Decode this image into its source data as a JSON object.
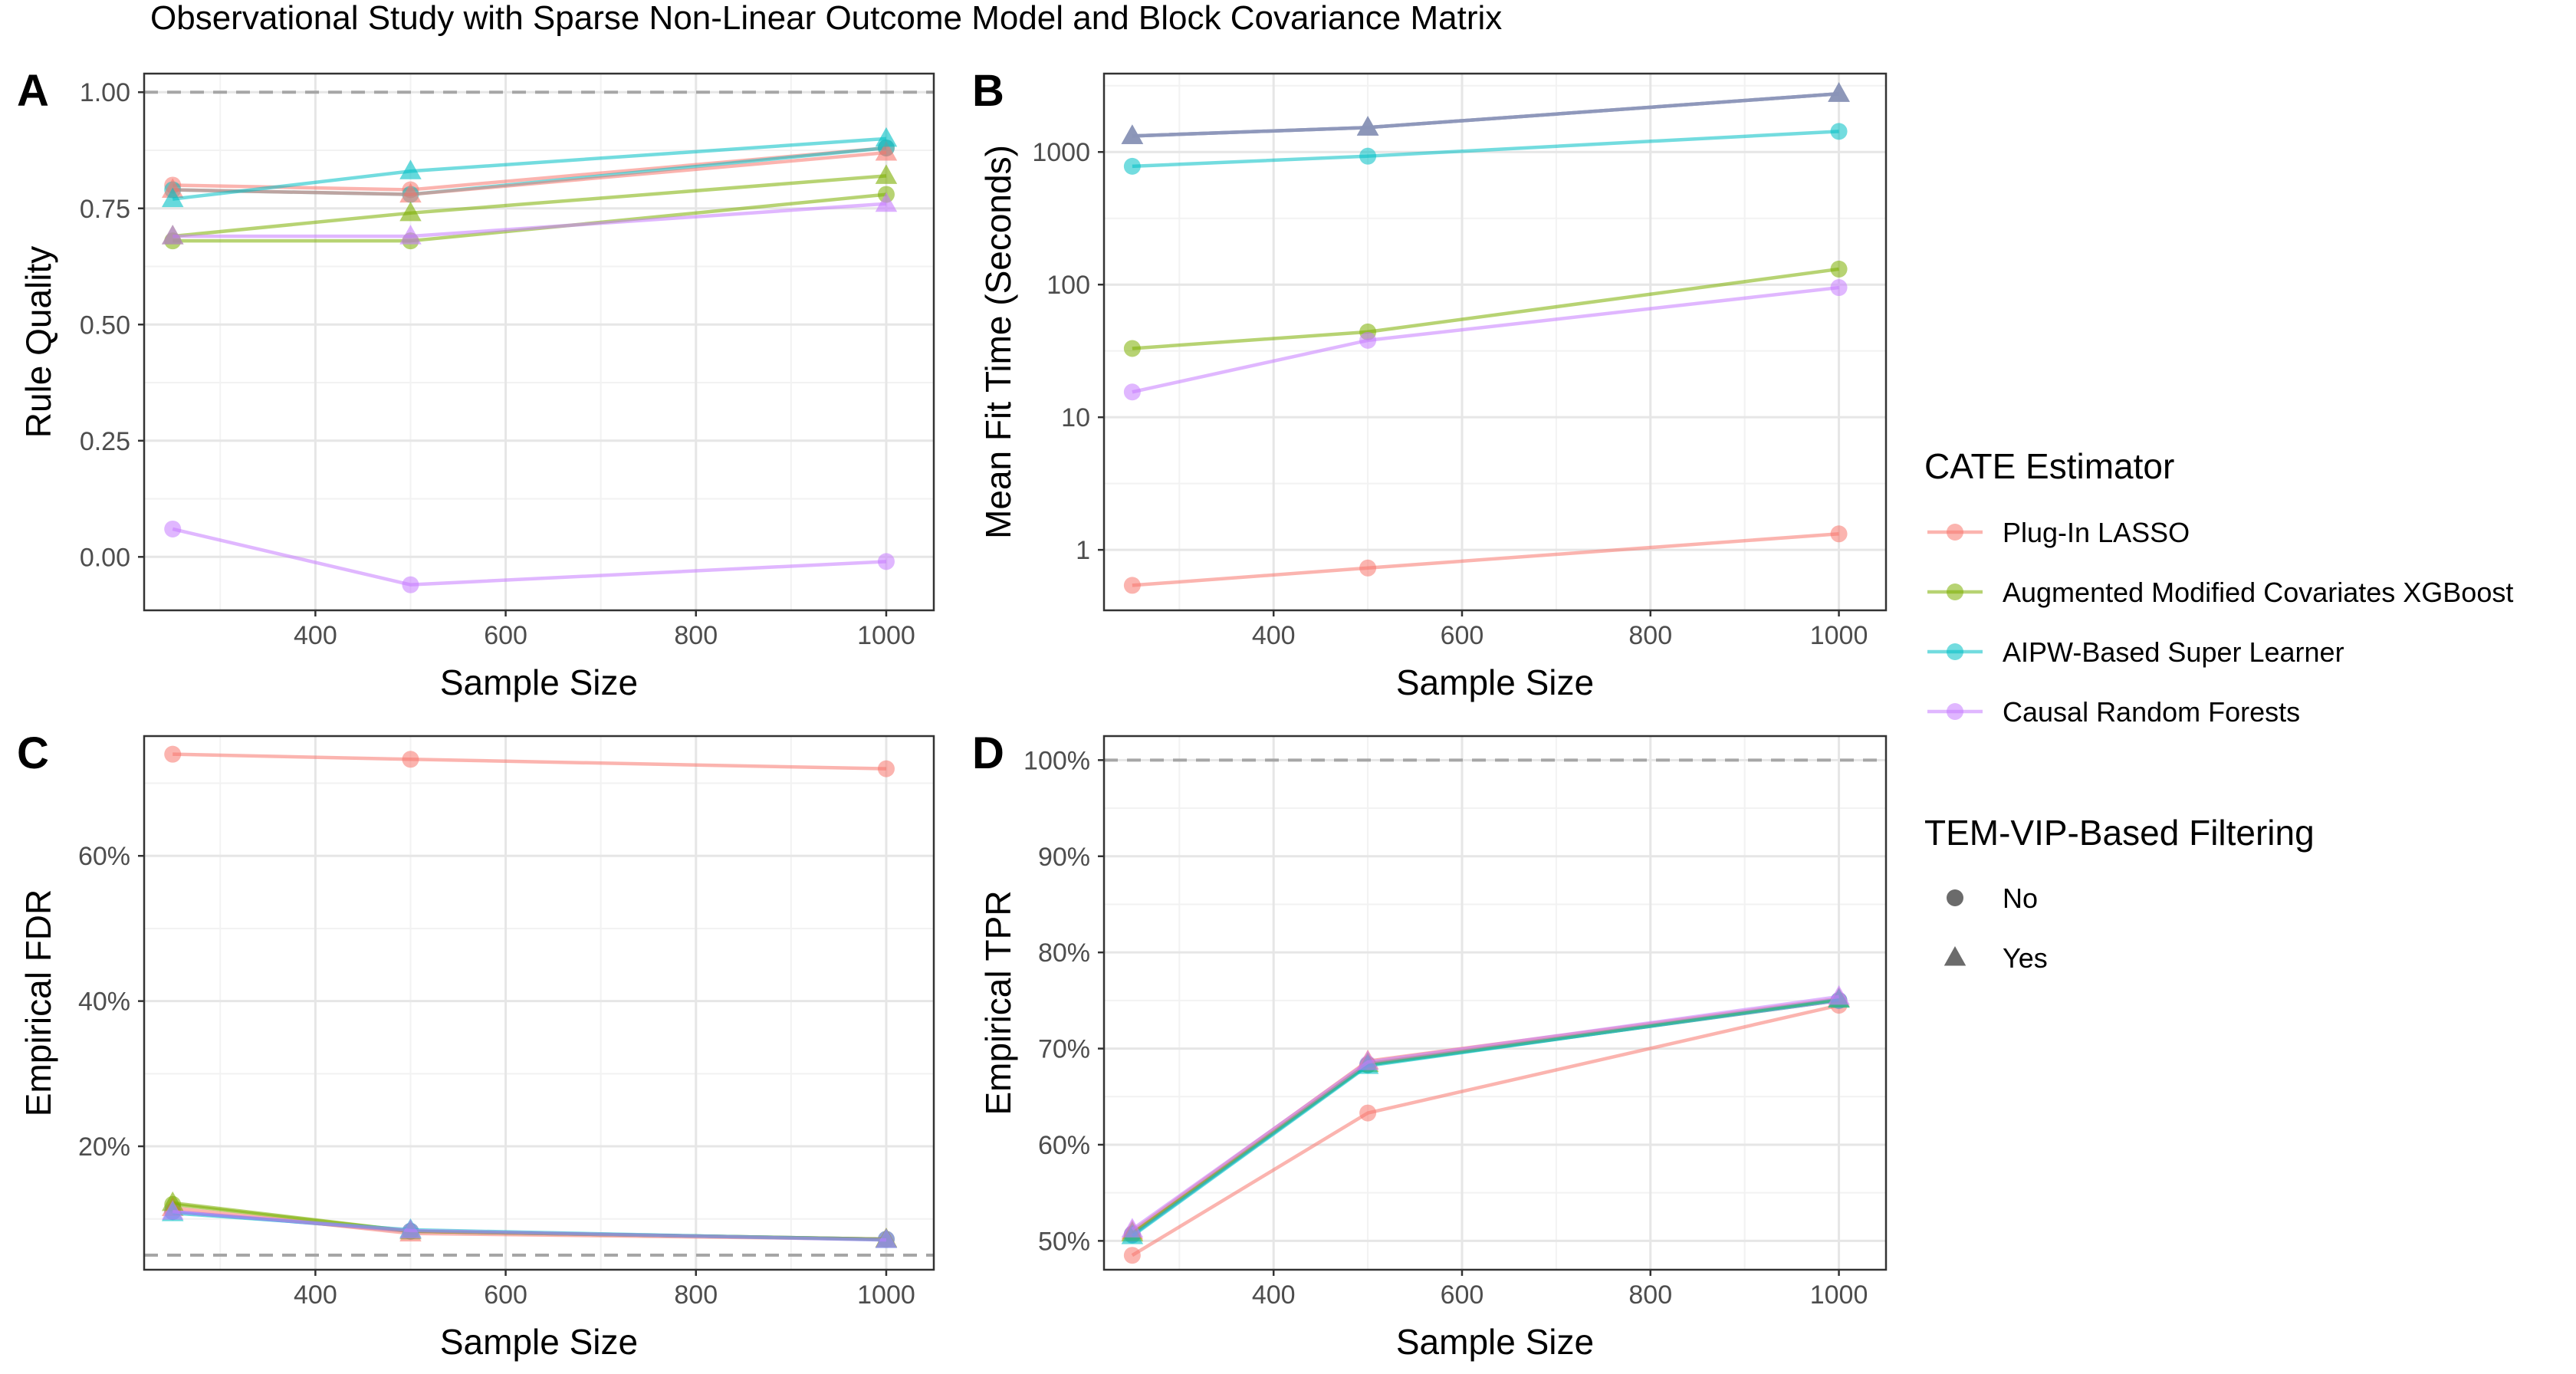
{
  "figure_title": "Observational Study with Sparse Non-Linear Outcome Model and Block Covariance Matrix",
  "chart_data": [
    {
      "panel": "A",
      "type": "line",
      "xlabel": "Sample Size",
      "ylabel": "Rule Quality",
      "x": [
        250,
        500,
        1000
      ],
      "xlim": [
        220,
        1050
      ],
      "xticks": [
        400,
        600,
        800,
        1000
      ],
      "ylim": [
        -0.115,
        1.04
      ],
      "yticks": [
        0,
        0.25,
        0.5,
        0.75,
        1
      ],
      "yticklabels": [
        "0.00",
        "0.25",
        "0.50",
        "0.75",
        "1.00"
      ],
      "reference_line": 1.0,
      "log_y": false,
      "series": [
        {
          "name": "Plug-In LASSO",
          "filtering": "No",
          "values": [
            0.8,
            0.79,
            0.88
          ]
        },
        {
          "name": "Plug-In LASSO",
          "filtering": "Yes",
          "values": [
            0.79,
            0.78,
            0.87
          ]
        },
        {
          "name": "Augmented Modified Covariates XGBoost",
          "filtering": "No",
          "values": [
            0.68,
            0.68,
            0.78
          ]
        },
        {
          "name": "Augmented Modified Covariates XGBoost",
          "filtering": "Yes",
          "values": [
            0.69,
            0.74,
            0.82
          ]
        },
        {
          "name": "AIPW-Based Super Learner",
          "filtering": "No",
          "values": [
            0.79,
            0.78,
            0.88
          ]
        },
        {
          "name": "AIPW-Based Super Learner",
          "filtering": "Yes",
          "values": [
            0.77,
            0.83,
            0.9
          ]
        },
        {
          "name": "Causal Random Forests",
          "filtering": "No",
          "values": [
            0.06,
            -0.06,
            -0.01
          ]
        },
        {
          "name": "Causal Random Forests",
          "filtering": "Yes",
          "values": [
            0.69,
            0.69,
            0.76
          ]
        }
      ]
    },
    {
      "panel": "B",
      "type": "line",
      "xlabel": "Sample Size",
      "ylabel": "Mean Fit Time (Seconds)",
      "x": [
        250,
        500,
        1000
      ],
      "xlim": [
        220,
        1050
      ],
      "xticks": [
        400,
        600,
        800,
        1000
      ],
      "ylim": [
        0.35,
        3900
      ],
      "yticks": [
        1,
        10,
        100,
        1000
      ],
      "yticklabels": [
        "1",
        "10",
        "100",
        "1000"
      ],
      "log_y": true,
      "series": [
        {
          "name": "Plug-In LASSO",
          "filtering": "No",
          "values": [
            0.54,
            0.73,
            1.32
          ]
        },
        {
          "name": "Plug-In LASSO",
          "filtering": "Yes",
          "values": [
            1320,
            1530,
            2750
          ]
        },
        {
          "name": "Augmented Modified Covariates XGBoost",
          "filtering": "No",
          "values": [
            33,
            44,
            131
          ]
        },
        {
          "name": "Augmented Modified Covariates XGBoost",
          "filtering": "Yes",
          "values": [
            1320,
            1530,
            2750
          ]
        },
        {
          "name": "AIPW-Based Super Learner",
          "filtering": "No",
          "values": [
            780,
            930,
            1430
          ]
        },
        {
          "name": "AIPW-Based Super Learner",
          "filtering": "Yes",
          "values": [
            1320,
            1530,
            2750
          ]
        },
        {
          "name": "Causal Random Forests",
          "filtering": "No",
          "values": [
            15.5,
            38,
            95
          ]
        },
        {
          "name": "Causal Random Forests",
          "filtering": "Yes",
          "values": [
            1320,
            1530,
            2750
          ]
        }
      ]
    },
    {
      "panel": "C",
      "type": "line",
      "xlabel": "Sample Size",
      "ylabel": "Empirical FDR",
      "x": [
        250,
        500,
        1000
      ],
      "xlim": [
        220,
        1050
      ],
      "xticks": [
        400,
        600,
        800,
        1000
      ],
      "ylim": [
        0.03,
        0.765
      ],
      "yticks": [
        0.2,
        0.4,
        0.6
      ],
      "yticklabels": [
        "20%",
        "40%",
        "60%"
      ],
      "reference_line": 0.05,
      "log_y": false,
      "series": [
        {
          "name": "Plug-In LASSO",
          "filtering": "No",
          "values": [
            0.74,
            0.733,
            0.72
          ]
        },
        {
          "name": "Plug-In LASSO",
          "filtering": "Yes",
          "values": [
            0.115,
            0.08,
            0.072
          ]
        },
        {
          "name": "Augmented Modified Covariates XGBoost",
          "filtering": "No",
          "values": [
            0.12,
            0.083,
            0.072
          ]
        },
        {
          "name": "Augmented Modified Covariates XGBoost",
          "filtering": "Yes",
          "values": [
            0.122,
            0.083,
            0.072
          ]
        },
        {
          "name": "AIPW-Based Super Learner",
          "filtering": "No",
          "values": [
            0.11,
            0.083,
            0.072
          ]
        },
        {
          "name": "AIPW-Based Super Learner",
          "filtering": "Yes",
          "values": [
            0.108,
            0.085,
            0.071
          ]
        },
        {
          "name": "Causal Random Forests",
          "filtering": "No",
          "values": [
            0.11,
            0.083,
            0.072
          ]
        },
        {
          "name": "Causal Random Forests",
          "filtering": "Yes",
          "values": [
            0.11,
            0.084,
            0.071
          ]
        }
      ]
    },
    {
      "panel": "D",
      "type": "line",
      "xlabel": "Sample Size",
      "ylabel": "Empirical TPR",
      "x": [
        250,
        500,
        1000
      ],
      "xlim": [
        220,
        1050
      ],
      "xticks": [
        400,
        600,
        800,
        1000
      ],
      "ylim": [
        0.47,
        1.025
      ],
      "yticks": [
        0.5,
        0.6,
        0.7,
        0.8,
        0.9,
        1.0
      ],
      "yticklabels": [
        "50%",
        "60%",
        "70%",
        "80%",
        "90%",
        "100%"
      ],
      "reference_line": 1.0,
      "log_y": false,
      "series": [
        {
          "name": "Plug-In LASSO",
          "filtering": "No",
          "values": [
            0.485,
            0.633,
            0.745
          ]
        },
        {
          "name": "Plug-In LASSO",
          "filtering": "Yes",
          "values": [
            0.51,
            0.687,
            0.752
          ]
        },
        {
          "name": "Augmented Modified Covariates XGBoost",
          "filtering": "No",
          "values": [
            0.507,
            0.683,
            0.75
          ]
        },
        {
          "name": "Augmented Modified Covariates XGBoost",
          "filtering": "Yes",
          "values": [
            0.508,
            0.684,
            0.751
          ]
        },
        {
          "name": "AIPW-Based Super Learner",
          "filtering": "No",
          "values": [
            0.506,
            0.683,
            0.75
          ]
        },
        {
          "name": "AIPW-Based Super Learner",
          "filtering": "Yes",
          "values": [
            0.505,
            0.682,
            0.751
          ]
        },
        {
          "name": "Causal Random Forests",
          "filtering": "No",
          "values": [
            0.507,
            0.684,
            0.75
          ]
        },
        {
          "name": "Causal Random Forests",
          "filtering": "Yes",
          "values": [
            0.512,
            0.686,
            0.754
          ]
        }
      ]
    }
  ],
  "legend": {
    "estimator_title": "CATE Estimator",
    "estimators": [
      {
        "name": "Plug-In LASSO",
        "color": "#F8766D"
      },
      {
        "name": "Augmented Modified Covariates XGBoost",
        "color": "#7CAE00"
      },
      {
        "name": "AIPW-Based Super Learner",
        "color": "#00BFC4"
      },
      {
        "name": "Causal Random Forests",
        "color": "#C77CFF"
      }
    ],
    "filtering_title": "TEM-VIP-Based Filtering",
    "filtering": [
      {
        "label": "No",
        "shape": "circle"
      },
      {
        "label": "Yes",
        "shape": "triangle"
      }
    ]
  }
}
